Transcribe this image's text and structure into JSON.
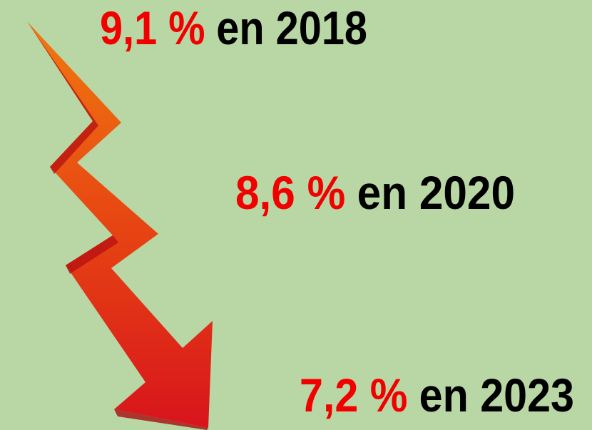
{
  "items": [
    {
      "value": "9,1 %",
      "label": "en 2018"
    },
    {
      "value": "8,6 %",
      "label": "en 2020"
    },
    {
      "value": "7,2 %",
      "label": "en 2023"
    }
  ]
}
